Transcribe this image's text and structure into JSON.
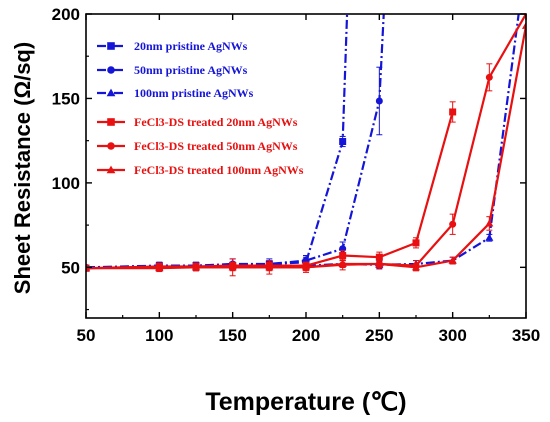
{
  "chart_data": {
    "type": "line",
    "title": "",
    "xlabel": "Temperature (℃)",
    "ylabel": "Sheet Resistance (Ω/sq)",
    "xlim": [
      50,
      350
    ],
    "ylim": [
      20,
      200
    ],
    "xticks": [
      "50",
      "100",
      "150",
      "200",
      "250",
      "300",
      "350"
    ],
    "yticks": [
      "50",
      "100",
      "150",
      "200"
    ],
    "grid": false,
    "legend_position": "top-left",
    "colors": {
      "blue": "#1515d8",
      "red": "#e81010"
    },
    "series": [
      {
        "name": "20nm pristine AgNWs",
        "color": "#1515d8",
        "dash": "dashdot",
        "marker": "square",
        "x": [
          50,
          100,
          125,
          150,
          175,
          200,
          225,
          228
        ],
        "y": [
          49.5,
          51,
          51,
          51,
          52,
          53,
          124.5,
          200
        ],
        "err": [
          0,
          2,
          2,
          2,
          2,
          3,
          3,
          0
        ]
      },
      {
        "name": "50nm pristine AgNWs",
        "color": "#1515d8",
        "dash": "dashdot",
        "marker": "circle",
        "x": [
          50,
          100,
          125,
          150,
          175,
          200,
          225,
          250,
          253
        ],
        "y": [
          50,
          51,
          51,
          52,
          52,
          54,
          61,
          148.5,
          200
        ],
        "err": [
          0,
          2,
          2,
          3,
          3,
          3,
          4,
          20,
          0
        ]
      },
      {
        "name": "100nm pristine AgNWs",
        "color": "#1515d8",
        "dash": "dashdot",
        "marker": "triangle",
        "x": [
          50,
          100,
          125,
          150,
          175,
          200,
          225,
          250,
          275,
          300,
          325,
          345
        ],
        "y": [
          50,
          50,
          50,
          51,
          51,
          51,
          52,
          51.5,
          52,
          54,
          67.5,
          200
        ],
        "err": [
          0,
          2,
          2,
          2,
          2,
          2,
          2,
          2,
          2,
          2,
          2,
          0
        ]
      },
      {
        "name": "FeCl3-DS treated 20nm AgNWs",
        "color": "#e81010",
        "dash": "solid",
        "marker": "square",
        "x": [
          50,
          100,
          125,
          150,
          175,
          200,
          225,
          250,
          275,
          300
        ],
        "y": [
          49.5,
          50.5,
          50.5,
          51,
          51,
          51,
          57,
          56,
          64.5,
          142
        ],
        "err": [
          0,
          2,
          2,
          2,
          2,
          2,
          3,
          3,
          3,
          6
        ]
      },
      {
        "name": "FeCl3-DS treated 50nm AgNWs",
        "color": "#e81010",
        "dash": "solid",
        "marker": "circle",
        "x": [
          50,
          100,
          125,
          150,
          175,
          200,
          225,
          250,
          275,
          300,
          325,
          350
        ],
        "y": [
          49.5,
          50,
          50,
          50,
          50,
          50,
          51.5,
          52,
          51,
          75.5,
          162.5,
          200
        ],
        "err": [
          0,
          2,
          2,
          5,
          4,
          3,
          3,
          3,
          3,
          6,
          8,
          0
        ]
      },
      {
        "name": "FeCl3-DS treated 100nm AgNWs",
        "color": "#e81010",
        "dash": "solid",
        "marker": "triangle",
        "x": [
          50,
          100,
          125,
          150,
          175,
          200,
          225,
          250,
          275,
          300,
          325,
          350
        ],
        "y": [
          49.5,
          49.5,
          50,
          50,
          50,
          50,
          52,
          52,
          50,
          54,
          76,
          193
        ],
        "err": [
          0,
          2,
          2,
          2,
          2,
          2,
          2,
          2,
          2,
          2,
          4,
          0
        ]
      }
    ]
  }
}
